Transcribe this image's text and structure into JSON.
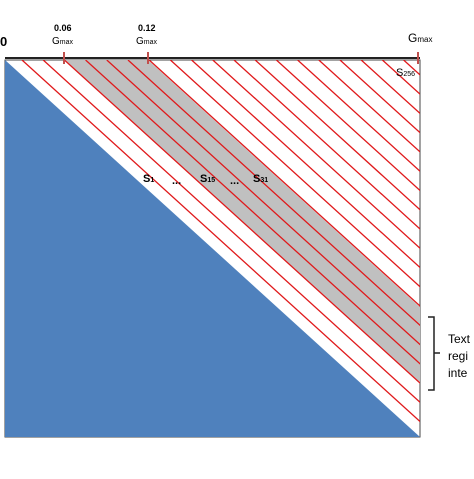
{
  "axis": {
    "origin": "0",
    "ticks": [
      {
        "value": "0.06",
        "symbol": "G",
        "sub": "max"
      },
      {
        "value": "0.12",
        "symbol": "G",
        "sub": "max"
      }
    ],
    "end": {
      "symbol": "G",
      "sub": "max"
    }
  },
  "labels": [
    {
      "symbol": "S",
      "sub": "1"
    },
    {
      "symbol": "...",
      "sub": ""
    },
    {
      "symbol": "S",
      "sub": "15"
    },
    {
      "symbol": "...",
      "sub": ""
    },
    {
      "symbol": "S",
      "sub": "31"
    }
  ],
  "corner_label": {
    "symbol": "S",
    "sub": "256"
  },
  "side_text": [
    "Text",
    "regi",
    "inte"
  ]
}
